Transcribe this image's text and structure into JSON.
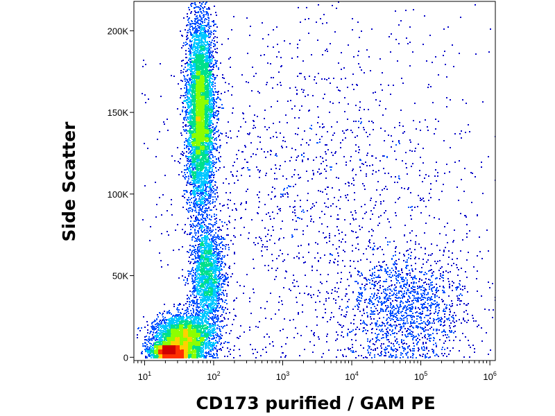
{
  "chart_data": {
    "type": "scatter",
    "title": "",
    "xlabel": "CD173 purified / GAM PE",
    "ylabel": "Side Scatter",
    "x_scale": "log",
    "xlim": [
      7,
      1200000
    ],
    "ylim": [
      -2000,
      218000
    ],
    "x_ticks": [
      {
        "value": 10,
        "base": "10",
        "exp": "1"
      },
      {
        "value": 100,
        "base": "10",
        "exp": "2"
      },
      {
        "value": 1000,
        "base": "10",
        "exp": "3"
      },
      {
        "value": 10000,
        "base": "10",
        "exp": "4"
      },
      {
        "value": 100000,
        "base": "10",
        "exp": "5"
      },
      {
        "value": 1000000,
        "base": "10",
        "exp": "6"
      }
    ],
    "y_ticks": [
      {
        "value": 0,
        "label": "0"
      },
      {
        "value": 50000,
        "label": "50K"
      },
      {
        "value": 100000,
        "label": "100K"
      },
      {
        "value": 150000,
        "label": "150K"
      },
      {
        "value": 200000,
        "label": "200K"
      }
    ],
    "grid": false,
    "legend": "none",
    "density_colors": [
      "#0000c8",
      "#0050ff",
      "#00c8ff",
      "#00e08c",
      "#8cff00",
      "#ffd000",
      "#ff3000",
      "#d00000"
    ],
    "populations": [
      {
        "x_log_center": 1.8,
        "x_log_sd": 0.1,
        "y_center": 150000,
        "y_sd": 30000,
        "weight": 0.37
      },
      {
        "x_log_center": 1.55,
        "x_log_sd": 0.22,
        "y_center": 12000,
        "y_sd": 7000,
        "weight": 0.22
      },
      {
        "x_log_center": 1.35,
        "x_log_sd": 0.14,
        "y_center": 4000,
        "y_sd": 2500,
        "weight": 0.1
      },
      {
        "x_log_center": 1.9,
        "x_log_sd": 0.12,
        "y_center": 50000,
        "y_sd": 15000,
        "weight": 0.12
      },
      {
        "x_log_center": 4.75,
        "x_log_sd": 0.45,
        "y_center": 30000,
        "y_sd": 18000,
        "weight": 0.09
      },
      {
        "x_log_center": 3.5,
        "x_log_sd": 1.2,
        "y_center": 100000,
        "y_sd": 60000,
        "weight": 0.1
      }
    ]
  }
}
